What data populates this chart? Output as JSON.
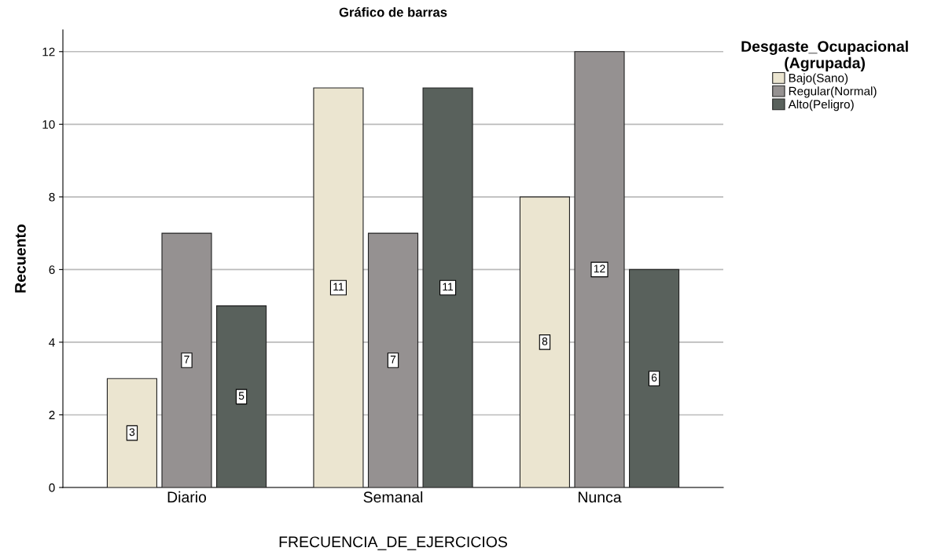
{
  "chart_data": {
    "type": "bar",
    "title": "Gráfico de barras",
    "xlabel": "FRECUENCIA_DE_EJERCICIOS",
    "ylabel": "Recuento",
    "legend_title": "Desgaste_Ocupacional\n(Agrupada)",
    "categories": [
      "Diario",
      "Semanal",
      "Nunca"
    ],
    "series": [
      {
        "name": "Bajo(Sano)",
        "color": "#ebe5d0",
        "values": [
          3,
          11,
          8
        ]
      },
      {
        "name": "Regular(Normal)",
        "color": "#959191",
        "values": [
          7,
          7,
          12
        ]
      },
      {
        "name": "Alto(Peligro)",
        "color": "#59615c",
        "values": [
          5,
          11,
          6
        ]
      }
    ],
    "ylim": [
      0,
      12.6
    ],
    "yticks": [
      0,
      2,
      4,
      6,
      8,
      10,
      12
    ],
    "grid": "y",
    "legend": "top right",
    "data_labels": true
  }
}
